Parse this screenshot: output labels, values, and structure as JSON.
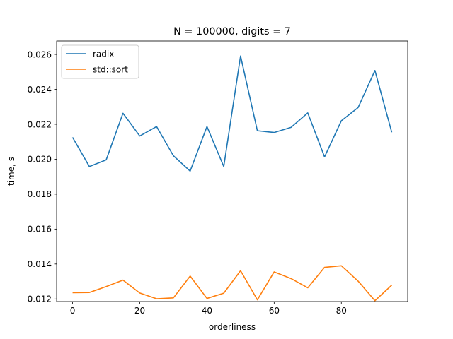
{
  "chart_data": {
    "type": "line",
    "title": "N = 100000, digits = 7",
    "xlabel": "orderliness",
    "ylabel": "time, s",
    "xlim": [
      -4.75,
      99.75
    ],
    "ylim": [
      0.01185,
      0.02677
    ],
    "x_ticks": [
      0,
      20,
      40,
      60,
      80
    ],
    "y_ticks": [
      0.012,
      0.014,
      0.016,
      0.018,
      0.02,
      0.022,
      0.024,
      0.026
    ],
    "y_tick_labels": [
      "0.012",
      "0.014",
      "0.016",
      "0.018",
      "0.020",
      "0.022",
      "0.024",
      "0.026"
    ],
    "grid": false,
    "legend_position": "top-left",
    "x": [
      0,
      5,
      10,
      15,
      20,
      25,
      30,
      35,
      40,
      45,
      50,
      55,
      60,
      65,
      70,
      75,
      80,
      85,
      90,
      95
    ],
    "series": [
      {
        "name": "radix",
        "color": "#1f77b4",
        "values": [
          0.02125,
          0.01958,
          0.01996,
          0.02263,
          0.02133,
          0.02187,
          0.0202,
          0.01932,
          0.02187,
          0.01958,
          0.02591,
          0.02163,
          0.02153,
          0.02182,
          0.02265,
          0.02013,
          0.0222,
          0.02296,
          0.02508,
          0.02154
        ]
      },
      {
        "name": "std::sort",
        "color": "#ff7f0e",
        "values": [
          0.01236,
          0.01237,
          0.01271,
          0.01308,
          0.01234,
          0.01201,
          0.01206,
          0.01331,
          0.01203,
          0.01233,
          0.01362,
          0.01195,
          0.01355,
          0.01317,
          0.01264,
          0.01381,
          0.0139,
          0.01302,
          0.0119,
          0.01279
        ]
      }
    ]
  }
}
